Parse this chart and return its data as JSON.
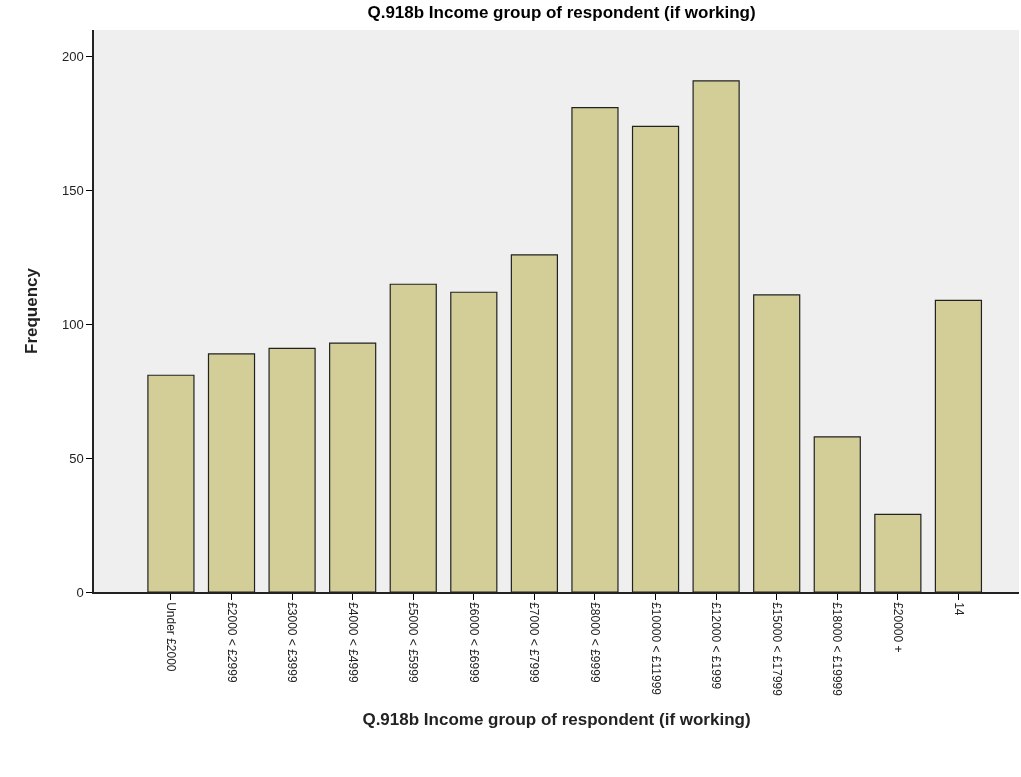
{
  "chart_data": {
    "type": "bar",
    "title": "Q.918b Income group of respondent (if working)",
    "xlabel": "Q.918b Income group of respondent (if working)",
    "ylabel": "Frequency",
    "categories": [
      "Under £2000",
      "£2000 < £2999",
      "£3000 < £3999",
      "£4000 < £4999",
      "£5000 < £5999",
      "£6000 < £6999",
      "£7000 < £7999",
      "£8000 < £9999",
      "£10000 < £11999",
      "£12000 < £1999",
      "£15000 < £17999",
      "£18000 < £19999",
      "£20000 +",
      "14"
    ],
    "values": [
      81,
      89,
      91,
      93,
      115,
      112,
      126,
      181,
      174,
      191,
      111,
      58,
      29,
      109
    ],
    "color": "#d3ce97",
    "ylim": [
      0,
      210
    ],
    "yticks": [
      0,
      50,
      100,
      150,
      200
    ],
    "grid": false
  }
}
